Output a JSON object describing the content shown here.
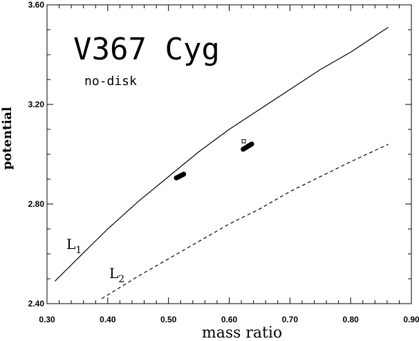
{
  "chart_data": {
    "type": "line",
    "title": "V367 Cyg",
    "subtitle": "no-disk",
    "xlabel": "mass ratio",
    "ylabel": "potential",
    "xlim": [
      0.3,
      0.9
    ],
    "ylim": [
      2.4,
      3.6
    ],
    "x_ticks": [
      "0.30",
      "0.40",
      "0.50",
      "0.60",
      "0.70",
      "0.80",
      "0.90"
    ],
    "y_ticks": [
      "2.40",
      "2.80",
      "3.20",
      "3.60"
    ],
    "grid": false,
    "series": [
      {
        "name": "L1",
        "label_main": "L",
        "label_sub": "1",
        "style": "solid",
        "x": [
          0.313,
          0.35,
          0.4,
          0.45,
          0.5,
          0.55,
          0.6,
          0.65,
          0.7,
          0.75,
          0.8,
          0.862
        ],
        "y": [
          2.49,
          2.58,
          2.7,
          2.81,
          2.91,
          3.01,
          3.1,
          3.18,
          3.26,
          3.34,
          3.41,
          3.51
        ]
      },
      {
        "name": "L2",
        "label_main": "L",
        "label_sub": "2",
        "style": "dashed",
        "x": [
          0.39,
          0.45,
          0.5,
          0.55,
          0.6,
          0.65,
          0.7,
          0.75,
          0.8,
          0.862
        ],
        "y": [
          2.42,
          2.51,
          2.58,
          2.65,
          2.72,
          2.78,
          2.85,
          2.91,
          2.97,
          3.04
        ]
      }
    ],
    "points": [
      {
        "group": "cluster-1",
        "shape": "filled",
        "x": [
          0.513,
          0.515,
          0.517,
          0.519,
          0.521,
          0.523,
          0.525
        ],
        "y": [
          2.905,
          2.907,
          2.91,
          2.912,
          2.915,
          2.917,
          2.92
        ]
      },
      {
        "group": "cluster-2",
        "shape": "filled",
        "x": [
          0.623,
          0.625,
          0.627,
          0.629,
          0.631,
          0.633,
          0.635,
          0.637
        ],
        "y": [
          3.02,
          3.023,
          3.026,
          3.029,
          3.032,
          3.035,
          3.038,
          3.041
        ]
      },
      {
        "group": "marker",
        "shape": "open-square",
        "x": [
          0.624
        ],
        "y": [
          3.052
        ]
      }
    ]
  }
}
